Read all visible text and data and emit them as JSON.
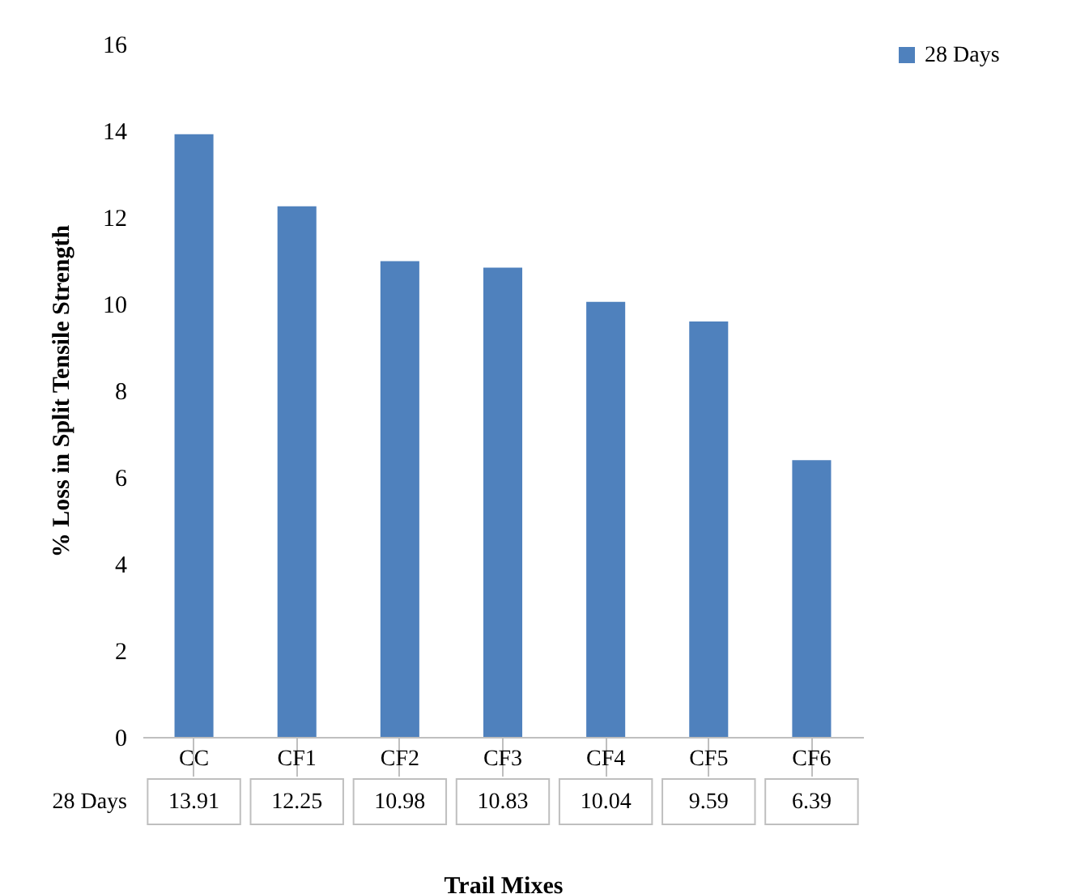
{
  "chart_data": {
    "type": "bar",
    "xlabel": "Trail Mixes",
    "ylabel": "% Loss in Split Tensile Strength",
    "categories": [
      "CC",
      "CF1",
      "CF2",
      "CF3",
      "CF4",
      "CF5",
      "CF6"
    ],
    "series": [
      {
        "name": "28 Days",
        "color": "#4f81bd",
        "values": [
          13.91,
          12.25,
          10.98,
          10.83,
          10.04,
          9.59,
          6.39
        ]
      }
    ],
    "ylim": [
      0,
      16
    ],
    "yticks": [
      0,
      2,
      4,
      6,
      8,
      10,
      12,
      14,
      16
    ],
    "data_labels": true,
    "legend": "right"
  }
}
